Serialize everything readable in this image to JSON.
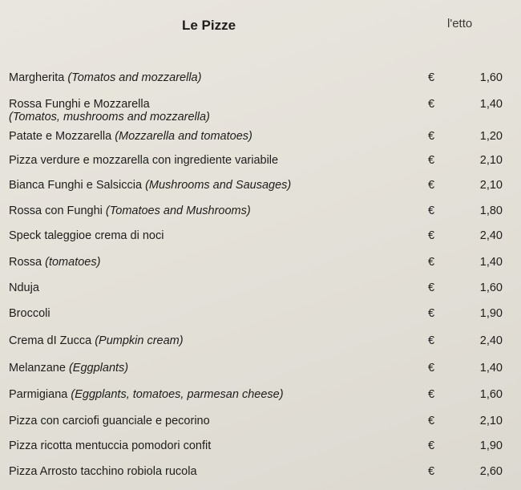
{
  "menu": {
    "title": "Le Pizze",
    "unit": "l'etto",
    "currency": "€",
    "items": [
      {
        "name": "Margherita",
        "description": "(Tomatos and mozzarella)",
        "price": "1,60"
      },
      {
        "name": "Rossa Funghi e Mozzarella",
        "description": "(Tomatos, mushrooms and mozzarella)",
        "price": "1,40",
        "description_on_new_line": true
      },
      {
        "name": "Patate e Mozzarella",
        "description": "(Mozzarella and tomatoes)",
        "price": "1,20"
      },
      {
        "name": "Pizza verdure e mozzarella con ingrediente variabile",
        "description": "",
        "price": "2,10"
      },
      {
        "name": "Bianca Funghi e Salsiccia",
        "description": "(Mushrooms and Sausages)",
        "price": "2,10"
      },
      {
        "name": "Rossa con Funghi",
        "description": "(Tomatoes and Mushrooms)",
        "price": "1,80"
      },
      {
        "name": "Speck taleggioe crema di noci",
        "description": "",
        "price": "2,40"
      },
      {
        "name": "Rossa",
        "description": "(tomatoes)",
        "price": "1,40"
      },
      {
        "name": "Nduja",
        "description": "",
        "price": "1,60"
      },
      {
        "name": "Broccoli",
        "description": "",
        "price": "1,90"
      },
      {
        "name": "Crema dI Zucca",
        "description": "(Pumpkin cream)",
        "price": "2,40"
      },
      {
        "name": "Melanzane",
        "description": "(Eggplants)",
        "price": "1,40"
      },
      {
        "name": "Parmigiana",
        "description": "(Eggplants, tomatoes, parmesan cheese)",
        "price": "1,60"
      },
      {
        "name": "Pizza con carciofi guanciale e pecorino",
        "description": "",
        "price": "2,10"
      },
      {
        "name": "Pizza ricotta mentuccia pomodori confit",
        "description": "",
        "price": "1,90"
      },
      {
        "name": "Pizza Arrosto tacchino robiola rucola",
        "description": "",
        "price": "2,60"
      }
    ]
  }
}
